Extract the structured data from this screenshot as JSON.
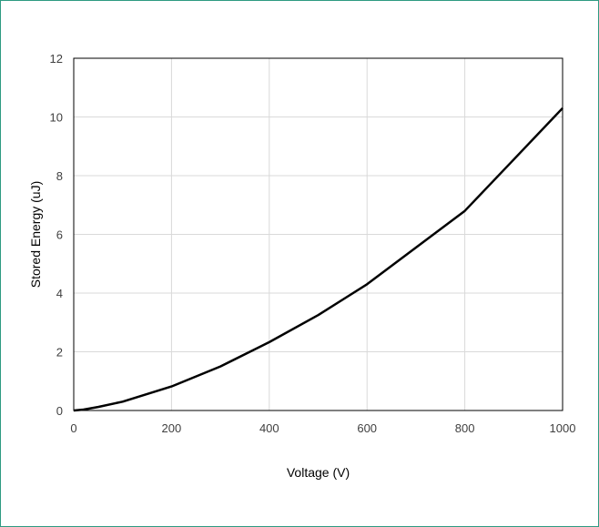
{
  "chart_data": {
    "type": "line",
    "title": "",
    "xlabel": "Voltage (V)",
    "ylabel": "Stored Energy (uJ)",
    "xlim": [
      0,
      1000
    ],
    "ylim": [
      0,
      12
    ],
    "xticks": [
      0,
      200,
      400,
      600,
      800,
      1000
    ],
    "yticks": [
      0,
      2,
      4,
      6,
      8,
      10,
      12
    ],
    "grid": true,
    "legend": "none",
    "series": [
      {
        "color": "#000000",
        "x": [
          0,
          20,
          50,
          100,
          200,
          300,
          400,
          500,
          600,
          700,
          800,
          900,
          1000
        ],
        "y": [
          0,
          0.03,
          0.12,
          0.3,
          0.82,
          1.5,
          2.33,
          3.25,
          4.3,
          5.55,
          6.8,
          8.55,
          10.3
        ]
      }
    ]
  }
}
